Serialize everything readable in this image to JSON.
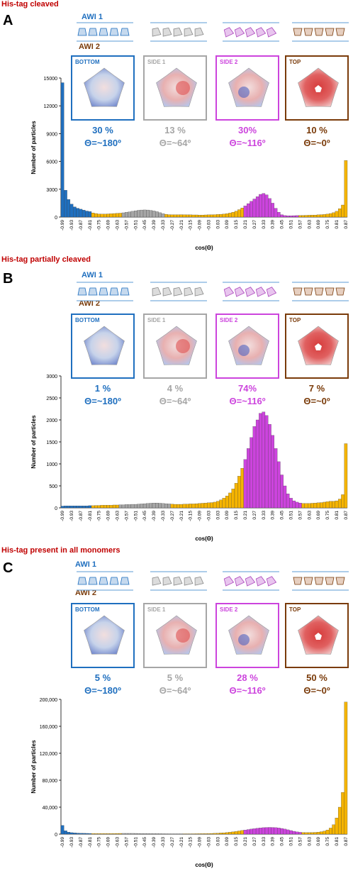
{
  "colors": {
    "bottom": "#1f6fbf",
    "side1": "#a6a6a6",
    "side2": "#cc44dd",
    "top": "#7a3b0a",
    "orange": "#f5b400",
    "grey_bar": "#8c8c8c",
    "title": "#c00000"
  },
  "sections": [
    {
      "title": "His-tag cleaved",
      "letter": "A",
      "awi1": "AWI 1",
      "awi2": "AWI 2",
      "panels": [
        {
          "label": "BOTTOM",
          "pct": "30 %",
          "theta": "Θ=~180º",
          "icon": "protein-bottom-view"
        },
        {
          "label": "SIDE 1",
          "pct": "13 %",
          "theta": "Θ=~64º",
          "icon": "protein-side1-view"
        },
        {
          "label": "SIDE 2",
          "pct": "30%",
          "theta": "Θ=~116º",
          "icon": "protein-side2-view"
        },
        {
          "label": "TOP",
          "pct": "10 %",
          "theta": "Θ=~0º",
          "icon": "protein-top-view"
        }
      ]
    },
    {
      "title": "His-tag partially cleaved",
      "letter": "B",
      "awi1": "AWI 1",
      "awi2": "AWI 2",
      "panels": [
        {
          "label": "BOTTOM",
          "pct": "1 %",
          "theta": "Θ=~180º",
          "icon": "protein-bottom-view"
        },
        {
          "label": "SIDE 1",
          "pct": "4 %",
          "theta": "Θ=~64º",
          "icon": "protein-side1-view"
        },
        {
          "label": "SIDE 2",
          "pct": "74%",
          "theta": "Θ=~116º",
          "icon": "protein-side2-view"
        },
        {
          "label": "TOP",
          "pct": "7 %",
          "theta": "Θ=~0º",
          "icon": "protein-top-view"
        }
      ]
    },
    {
      "title": "His-tag present in all monomers",
      "letter": "C",
      "awi1": "AWI 1",
      "awi2": "AWI 2",
      "panels": [
        {
          "label": "BOTTOM",
          "pct": "5 %",
          "theta": "Θ=~180º",
          "icon": "protein-bottom-view"
        },
        {
          "label": "SIDE 1",
          "pct": "5 %",
          "theta": "Θ=~64º",
          "icon": "protein-side1-view"
        },
        {
          "label": "SIDE 2",
          "pct": "28 %",
          "theta": "Θ=~116º",
          "icon": "protein-side2-view"
        },
        {
          "label": "TOP",
          "pct": "50 %",
          "theta": "Θ=~0º",
          "icon": "protein-top-view"
        }
      ]
    }
  ],
  "chart_data": [
    {
      "type": "bar",
      "xlabel": "cos(Θ)",
      "ylabel": "Number of particles",
      "ylim": [
        0,
        15000
      ],
      "yticks": [
        "0",
        "3000",
        "6000",
        "9000",
        "12000",
        "15000"
      ],
      "xtick_labels": [
        "-0.99",
        "-0.93",
        "-0.87",
        "-0.81",
        "-0.75",
        "-0.69",
        "-0.63",
        "-0.57",
        "-0.51",
        "-0.45",
        "-0.39",
        "-0.33",
        "-0.27",
        "-0.21",
        "-0.15",
        "-0.09",
        "-0.03",
        "0.03",
        "0.09",
        "0.15",
        "0.21",
        "0.27",
        "0.33",
        "0.39",
        "0.45",
        "0.51",
        "0.57",
        "0.63",
        "0.69",
        "0.75",
        "0.81",
        "0.87",
        "0.93",
        "0.99"
      ],
      "bin_width": 0.02,
      "x_start": -0.99,
      "values": [
        14500,
        2900,
        1900,
        1400,
        1100,
        950,
        850,
        750,
        650,
        600,
        450,
        380,
        330,
        320,
        320,
        340,
        360,
        380,
        400,
        420,
        460,
        520,
        560,
        620,
        680,
        730,
        760,
        770,
        760,
        720,
        660,
        580,
        470,
        370,
        300,
        260,
        250,
        250,
        250,
        260,
        250,
        240,
        240,
        230,
        230,
        220,
        220,
        230,
        240,
        250,
        260,
        280,
        300,
        330,
        370,
        430,
        520,
        640,
        800,
        980,
        1200,
        1450,
        1700,
        1950,
        2200,
        2450,
        2550,
        2400,
        2000,
        1500,
        950,
        520,
        250,
        160,
        140,
        140,
        150,
        160,
        170,
        180,
        190,
        200,
        210,
        220,
        240,
        260,
        280,
        320,
        380,
        470,
        620,
        900,
        1300,
        6100
      ],
      "segments": [
        {
          "from": -1.0,
          "to": -0.8,
          "color_key": "bottom"
        },
        {
          "from": -0.8,
          "to": -0.6,
          "color_key": "orange"
        },
        {
          "from": -0.6,
          "to": -0.32,
          "color_key": "side1"
        },
        {
          "from": -0.32,
          "to": 0.2,
          "color_key": "orange"
        },
        {
          "from": 0.2,
          "to": 0.56,
          "color_key": "side2"
        },
        {
          "from": 0.56,
          "to": 0.9,
          "color_key": "orange"
        },
        {
          "from": 0.9,
          "to": 1.0,
          "color_key": "top"
        }
      ]
    },
    {
      "type": "bar",
      "xlabel": "cos(Θ)",
      "ylabel": "Number of particles",
      "ylim": [
        0,
        3000
      ],
      "yticks": [
        "0",
        "500",
        "1000",
        "1500",
        "2000",
        "2500",
        "3000"
      ],
      "xtick_labels": [
        "-0.99",
        "-0.93",
        "-0.87",
        "-0.81",
        "-0.75",
        "-0.69",
        "-0.63",
        "-0.57",
        "-0.51",
        "-0.45",
        "-0.39",
        "-0.33",
        "-0.27",
        "-0.21",
        "-0.15",
        "-0.09",
        "-0.03",
        "0.03",
        "0.09",
        "0.15",
        "0.21",
        "0.27",
        "0.33",
        "0.39",
        "0.45",
        "0.51",
        "0.57",
        "0.63",
        "0.69",
        "0.75",
        "0.81",
        "0.87",
        "0.93",
        "0.99"
      ],
      "bin_width": 0.02,
      "x_start": -0.99,
      "values": [
        40,
        45,
        45,
        45,
        45,
        45,
        45,
        45,
        45,
        50,
        50,
        55,
        55,
        60,
        60,
        60,
        60,
        65,
        65,
        70,
        70,
        75,
        75,
        80,
        80,
        85,
        90,
        95,
        100,
        105,
        110,
        110,
        105,
        100,
        95,
        90,
        85,
        80,
        80,
        80,
        85,
        85,
        90,
        90,
        95,
        100,
        105,
        110,
        115,
        120,
        130,
        150,
        180,
        220,
        270,
        340,
        430,
        560,
        720,
        900,
        1100,
        1350,
        1600,
        1850,
        2000,
        2150,
        2180,
        2100,
        1900,
        1650,
        1350,
        1050,
        750,
        500,
        320,
        220,
        160,
        130,
        110,
        100,
        100,
        100,
        105,
        110,
        115,
        120,
        130,
        140,
        150,
        150,
        160,
        200,
        300,
        1460
      ],
      "segments": [
        {
          "from": -1.0,
          "to": -0.8,
          "color_key": "bottom"
        },
        {
          "from": -0.8,
          "to": -0.62,
          "color_key": "orange"
        },
        {
          "from": -0.62,
          "to": -0.28,
          "color_key": "side1"
        },
        {
          "from": -0.28,
          "to": 0.2,
          "color_key": "orange"
        },
        {
          "from": 0.2,
          "to": 0.58,
          "color_key": "side2"
        },
        {
          "from": 0.58,
          "to": 0.9,
          "color_key": "orange"
        },
        {
          "from": 0.9,
          "to": 1.0,
          "color_key": "top"
        }
      ]
    },
    {
      "type": "bar",
      "xlabel": "cos(Θ)",
      "ylabel": "Number of particles",
      "ylim": [
        0,
        200000
      ],
      "yticks": [
        "0",
        "40,000",
        "80,000",
        "120,000",
        "160,000",
        "200,000"
      ],
      "xtick_labels": [
        "-0.99",
        "-0.93",
        "-0.87",
        "-0.81",
        "-0.75",
        "-0.69",
        "-0.63",
        "-0.57",
        "-0.51",
        "-0.45",
        "-0.39",
        "-0.33",
        "-0.27",
        "-0.21",
        "-0.15",
        "-0.09",
        "-0.03",
        "0.03",
        "0.09",
        "0.15",
        "0.21",
        "0.27",
        "0.33",
        "0.39",
        "0.45",
        "0.51",
        "0.57",
        "0.63",
        "0.69",
        "0.75",
        "0.81",
        "0.87",
        "0.93",
        "0.99"
      ],
      "bin_width": 0.02,
      "x_start": -0.99,
      "values": [
        13000,
        5000,
        3000,
        2200,
        1800,
        1500,
        1300,
        1200,
        1100,
        1000,
        950,
        900,
        900,
        900,
        900,
        900,
        900,
        950,
        1000,
        1050,
        1100,
        1100,
        1100,
        1100,
        1050,
        1000,
        950,
        900,
        850,
        800,
        750,
        700,
        650,
        600,
        550,
        500,
        500,
        500,
        500,
        500,
        500,
        500,
        500,
        550,
        600,
        650,
        700,
        800,
        900,
        1000,
        1200,
        1400,
        1700,
        2000,
        2400,
        2900,
        3400,
        4000,
        4700,
        5400,
        6100,
        6800,
        7500,
        8100,
        8700,
        9200,
        9600,
        9900,
        10000,
        9900,
        9600,
        9100,
        8400,
        7500,
        6400,
        5300,
        4200,
        3300,
        2700,
        2400,
        2300,
        2300,
        2400,
        2600,
        3000,
        3600,
        4600,
        6200,
        9000,
        14000,
        24000,
        40000,
        62000,
        196000
      ],
      "segments": [
        {
          "from": -1.0,
          "to": -0.8,
          "color_key": "bottom"
        },
        {
          "from": -0.8,
          "to": -0.6,
          "color_key": "orange"
        },
        {
          "from": -0.6,
          "to": -0.2,
          "color_key": "side1"
        },
        {
          "from": -0.2,
          "to": 0.2,
          "color_key": "orange"
        },
        {
          "from": 0.2,
          "to": 0.58,
          "color_key": "side2"
        },
        {
          "from": 0.58,
          "to": 0.9,
          "color_key": "orange"
        },
        {
          "from": 0.9,
          "to": 1.0,
          "color_key": "top"
        }
      ]
    }
  ]
}
